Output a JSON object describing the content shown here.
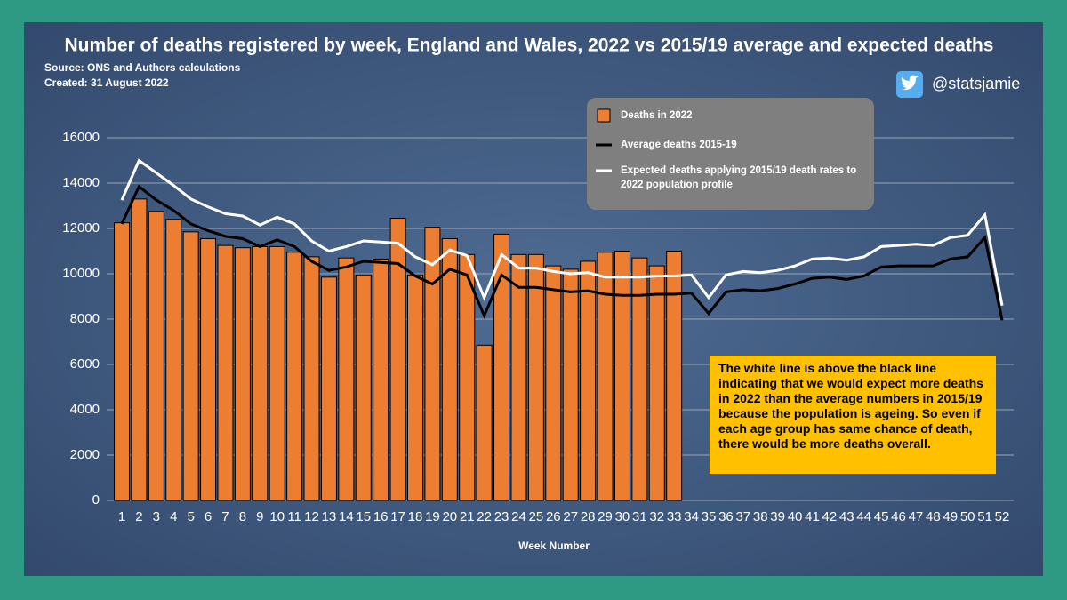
{
  "chart_data": {
    "type": "bar",
    "title": "Number of deaths registered by week, England and Wales, 2022 vs 2015/19 average and expected deaths",
    "subtitle": "Source: ONS and Authors calculations",
    "created": "Created: 31 August 2022",
    "handle": "@statsjamie",
    "xlabel": "Week Number",
    "annotation": "The white line is above the black line indicating that we would expect more deaths in 2022 than the average numbers in 2015/19 because the population is ageing. So even if each age group has same chance of death, there would be more deaths overall.",
    "categories": [
      "1",
      "2",
      "3",
      "4",
      "5",
      "6",
      "7",
      "8",
      "9",
      "10",
      "11",
      "12",
      "13",
      "14",
      "15",
      "16",
      "17",
      "18",
      "19",
      "20",
      "21",
      "22",
      "23",
      "24",
      "25",
      "26",
      "27",
      "28",
      "29",
      "30",
      "31",
      "32",
      "33",
      "34",
      "35",
      "36",
      "37",
      "38",
      "39",
      "40",
      "41",
      "42",
      "43",
      "44",
      "45",
      "46",
      "47",
      "48",
      "49",
      "50",
      "51",
      "52"
    ],
    "series": [
      {
        "name": "Deaths in 2022",
        "type": "bar",
        "color": "#ed7d31",
        "values": [
          12250,
          13300,
          12750,
          12400,
          11850,
          11550,
          11250,
          11150,
          11200,
          11200,
          10950,
          10750,
          9850,
          10700,
          9950,
          10650,
          12450,
          9950,
          12050,
          11550,
          10850,
          6850,
          11750,
          10850,
          10850,
          10350,
          10200,
          10550,
          10950,
          11000,
          10700,
          10350,
          11000,
          null,
          null,
          null,
          null,
          null,
          null,
          null,
          null,
          null,
          null,
          null,
          null,
          null,
          null,
          null,
          null,
          null,
          null,
          null
        ]
      },
      {
        "name": "Average deaths 2015-19",
        "type": "line",
        "color": "#000000",
        "values": [
          12200,
          13850,
          13250,
          12800,
          12200,
          11900,
          11650,
          11550,
          11200,
          11500,
          11200,
          10550,
          10150,
          10300,
          10550,
          10500,
          10450,
          9900,
          9550,
          10200,
          9950,
          8150,
          9950,
          9400,
          9400,
          9300,
          9200,
          9250,
          9100,
          9050,
          9050,
          9100,
          9100,
          9150,
          8250,
          9200,
          9300,
          9250,
          9350,
          9550,
          9800,
          9850,
          9750,
          9900,
          10300,
          10350,
          10350,
          10350,
          10650,
          10750,
          11600,
          7950
        ]
      },
      {
        "name": "Expected deaths applying 2015/19  death rates to 2022  population profile",
        "type": "line",
        "color": "#ffffff",
        "values": [
          13250,
          15000,
          14450,
          13900,
          13300,
          12950,
          12650,
          12550,
          12150,
          12500,
          12200,
          11450,
          11000,
          11200,
          11450,
          11400,
          11350,
          10750,
          10400,
          11050,
          10800,
          8950,
          10850,
          10250,
          10250,
          10100,
          10000,
          10050,
          9850,
          9850,
          9850,
          9900,
          9900,
          9950,
          8950,
          9950,
          10100,
          10050,
          10150,
          10350,
          10650,
          10700,
          10600,
          10750,
          11200,
          11250,
          11300,
          11250,
          11600,
          11700,
          12600,
          8600
        ]
      }
    ],
    "ylim": [
      0,
      16000
    ],
    "yticks": [
      0,
      2000,
      4000,
      6000,
      8000,
      10000,
      12000,
      14000,
      16000
    ],
    "grid": true
  }
}
